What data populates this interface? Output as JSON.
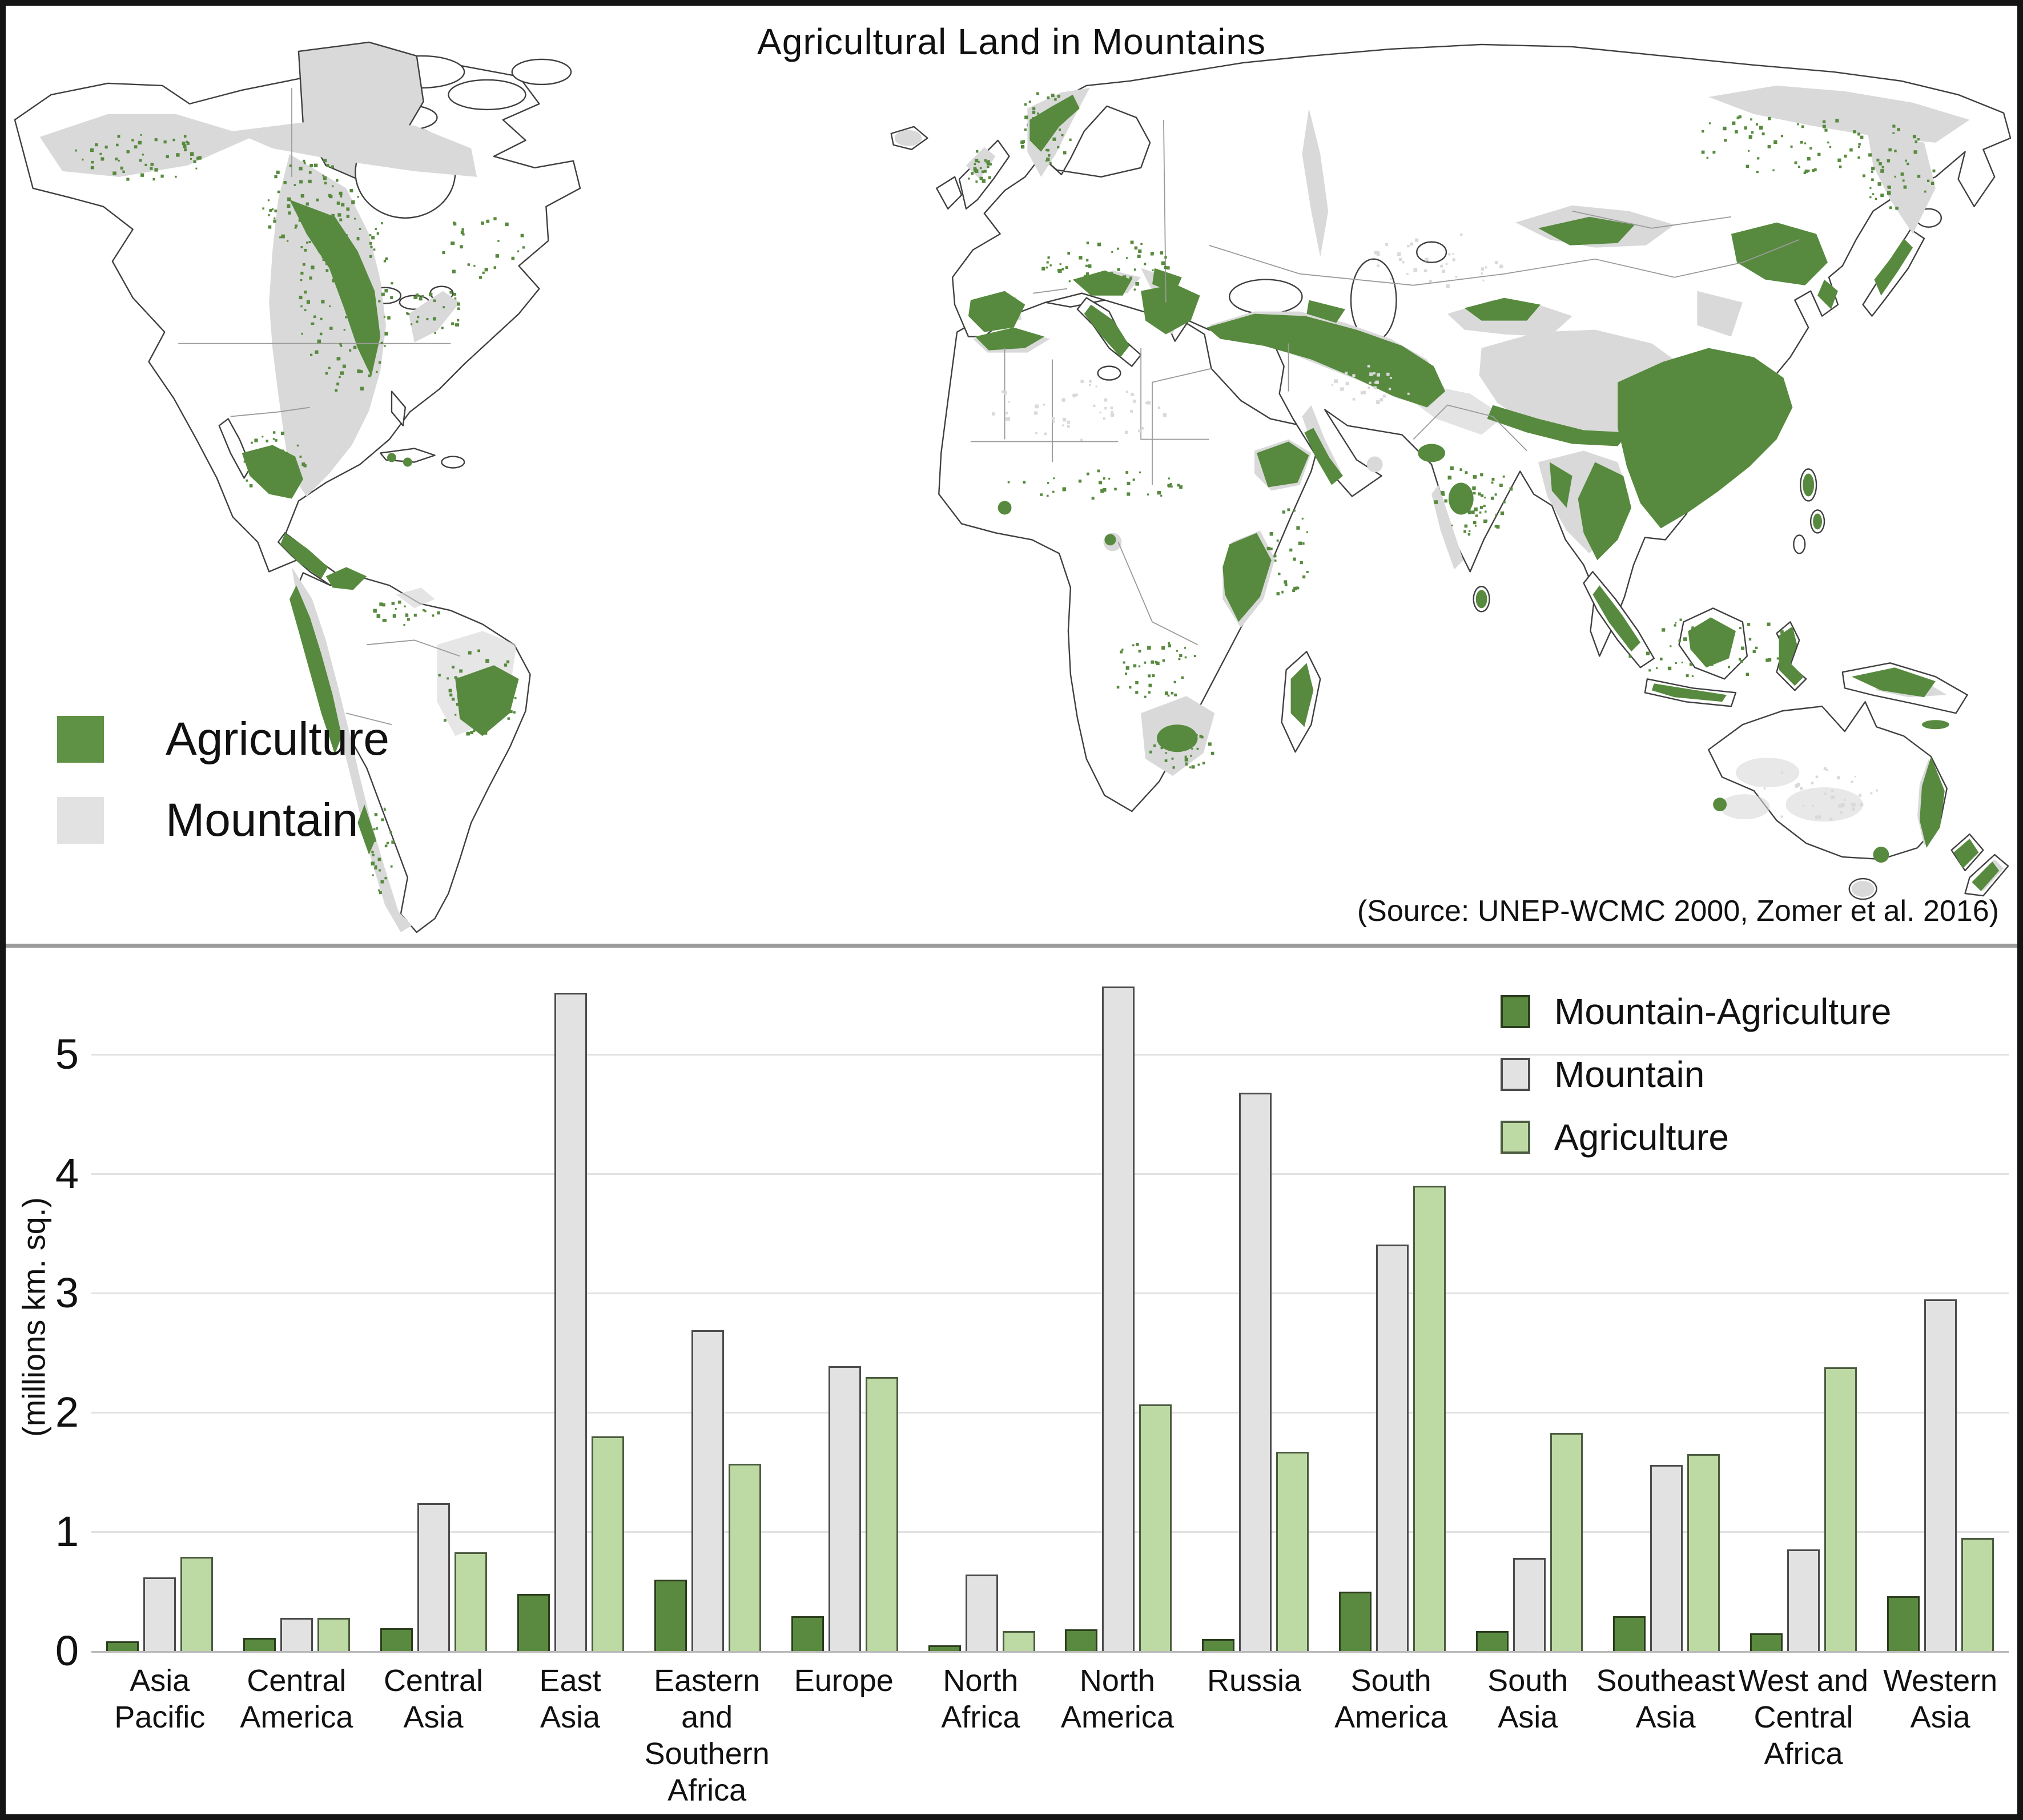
{
  "map_panel": {
    "title": "Agricultural Land in Mountains",
    "legend": [
      {
        "label": "Agriculture",
        "color": "#5f9244"
      },
      {
        "label": "Mountain",
        "color": "#e2e2e2"
      }
    ],
    "source": "(Source: UNEP-WCMC 2000, Zomer et al. 2016)"
  },
  "colors": {
    "map_agriculture": "#578a3e",
    "map_mountain": "#d9d9d9",
    "coastline": "#3f3f3f",
    "country_border": "#9a9a9a",
    "gridline": "#e2e2e2",
    "axis_line": "#b9b9b9"
  },
  "chart_data": {
    "type": "bar",
    "title": "",
    "xlabel": "",
    "ylabel": "(millions km. sq.)",
    "ylim": [
      0,
      5.6
    ],
    "yticks": [
      0,
      1,
      2,
      3,
      4,
      5
    ],
    "grid": true,
    "legend_position": "top-right",
    "categories": [
      [
        "Asia",
        "Pacific"
      ],
      [
        "Central",
        "America"
      ],
      [
        "Central",
        "Asia"
      ],
      [
        "East",
        "Asia"
      ],
      [
        "Eastern",
        "and",
        "Southern",
        "Africa"
      ],
      [
        "Europe"
      ],
      [
        "North",
        "Africa"
      ],
      [
        "North",
        "America"
      ],
      [
        "Russia"
      ],
      [
        "South",
        "America"
      ],
      [
        "South",
        "Asia"
      ],
      [
        "Southeast",
        "Asia"
      ],
      [
        "West and",
        "Central",
        "Africa"
      ],
      [
        "Western",
        "Asia"
      ]
    ],
    "series": [
      {
        "name": "Mountain-Agriculture",
        "color": "#5a8a3f",
        "border": "#2c3d1e",
        "values": [
          0.08,
          0.11,
          0.19,
          0.48,
          0.6,
          0.29,
          0.05,
          0.18,
          0.1,
          0.5,
          0.17,
          0.29,
          0.15,
          0.46
        ]
      },
      {
        "name": "Mountain",
        "color": "#e2e2e2",
        "border": "#4c4c4c",
        "values": [
          0.62,
          0.28,
          1.24,
          5.52,
          2.69,
          2.39,
          0.64,
          5.57,
          4.68,
          3.41,
          0.78,
          1.56,
          0.85,
          2.95
        ]
      },
      {
        "name": "Agriculture",
        "color": "#bedaa4",
        "border": "#4c5c40",
        "values": [
          0.79,
          0.28,
          0.83,
          1.8,
          1.57,
          2.3,
          0.17,
          2.07,
          1.67,
          3.9,
          1.83,
          1.65,
          2.38,
          0.95
        ]
      }
    ]
  }
}
